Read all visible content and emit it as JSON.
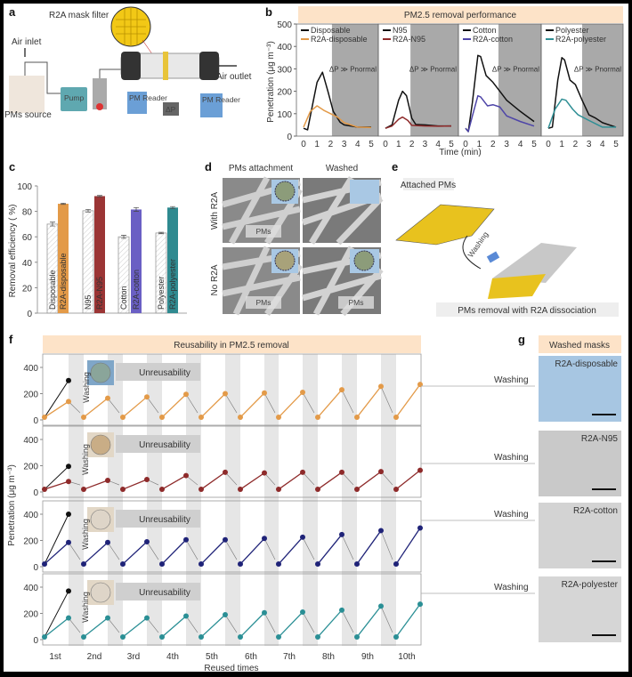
{
  "panels": {
    "a": "a",
    "b": "b",
    "c": "c",
    "d": "d",
    "e": "e",
    "f": "f",
    "g": "g"
  },
  "diagram_a": {
    "title": "R2A mask filter",
    "air_inlet": "Air inlet",
    "air_outlet": "Air outlet",
    "source": "PMs source",
    "pump": "Pump",
    "pm_reader": "PM Reader",
    "dp": "ΔP"
  },
  "panel_d": {
    "col1": "PMs attachment",
    "col2": "Washed",
    "row1": "With R2A",
    "row2": "No R2A",
    "pms": "PMs"
  },
  "panel_e": {
    "top": "Attached PMs",
    "washing": "Washing",
    "bottom": "PMs removal with R2A dissociation"
  },
  "panel_g": {
    "header": "Washed masks",
    "arrow_label": "Washing",
    "masks": [
      "R2A-disposable",
      "R2A-N95",
      "R2A-cotton",
      "R2A-polyester"
    ]
  },
  "colors": {
    "disposable": "#e39a48",
    "n95": "#8e2a2a",
    "cotton": "#4e45a8",
    "polyester": "#2f8f95",
    "control": "#111111",
    "shade": "#a9a9a9",
    "header": "#fde3c8"
  },
  "chart_data": [
    {
      "id": "b",
      "type": "line",
      "title": "PM2.5 removal performance",
      "xlabel": "Time (min)",
      "ylabel": "Penetration (μg m⁻³)",
      "ylim": [
        0,
        500
      ],
      "yticks": [
        0,
        100,
        200,
        300,
        400,
        500
      ],
      "xlim": [
        0,
        5
      ],
      "xticks": [
        0,
        1,
        2,
        3,
        4,
        5
      ],
      "annotation": "ΔP ≫ Pnormal",
      "subplots": [
        {
          "shade_from": 2.1,
          "series": [
            {
              "name": "Disposable",
              "color": "#111111",
              "points": [
                [
                  0,
                  35
                ],
                [
                  0.3,
                  28
                ],
                [
                  0.7,
                  150
                ],
                [
                  1,
                  240
                ],
                [
                  1.4,
                  285
                ],
                [
                  1.8,
                  200
                ],
                [
                  2.2,
                  110
                ],
                [
                  2.7,
                  62
                ],
                [
                  3,
                  50
                ],
                [
                  4,
                  40
                ],
                [
                  5,
                  40
                ]
              ]
            },
            {
              "name": "R2A-disposable",
              "color": "#e39a48",
              "points": [
                [
                  0,
                  40
                ],
                [
                  0.5,
                  110
                ],
                [
                  1,
                  135
                ],
                [
                  1.5,
                  115
                ],
                [
                  2,
                  100
                ],
                [
                  2.5,
                  85
                ],
                [
                  3,
                  60
                ],
                [
                  4,
                  40
                ],
                [
                  5,
                  38
                ]
              ]
            }
          ]
        },
        {
          "shade_from": 1.9,
          "series": [
            {
              "name": "N95",
              "color": "#111111",
              "points": [
                [
                  0,
                  35
                ],
                [
                  0.5,
                  50
                ],
                [
                  1,
                  160
                ],
                [
                  1.3,
                  200
                ],
                [
                  1.6,
                  180
                ],
                [
                  2,
                  80
                ],
                [
                  2.3,
                  52
                ],
                [
                  3,
                  50
                ],
                [
                  4,
                  45
                ],
                [
                  5,
                  45
                ]
              ]
            },
            {
              "name": "R2A-N95",
              "color": "#8e2a2a",
              "points": [
                [
                  0,
                  35
                ],
                [
                  0.5,
                  45
                ],
                [
                  1,
                  75
                ],
                [
                  1.3,
                  85
                ],
                [
                  1.7,
                  70
                ],
                [
                  2,
                  48
                ],
                [
                  3,
                  45
                ],
                [
                  4,
                  44
                ],
                [
                  5,
                  45
                ]
              ]
            }
          ]
        },
        {
          "shade_from": 2.4,
          "series": [
            {
              "name": "Cotton",
              "color": "#111111",
              "points": [
                [
                  0,
                  35
                ],
                [
                  0.2,
                  20
                ],
                [
                  0.5,
                  150
                ],
                [
                  0.9,
                  360
                ],
                [
                  1.1,
                  355
                ],
                [
                  1.5,
                  270
                ],
                [
                  2,
                  240
                ],
                [
                  2.5,
                  200
                ],
                [
                  3,
                  160
                ],
                [
                  4,
                  110
                ],
                [
                  5,
                  65
                ]
              ]
            },
            {
              "name": "R2A-cotton",
              "color": "#4e45a8",
              "points": [
                [
                  0,
                  35
                ],
                [
                  0.2,
                  20
                ],
                [
                  0.5,
                  90
                ],
                [
                  0.9,
                  180
                ],
                [
                  1.1,
                  175
                ],
                [
                  1.6,
                  135
                ],
                [
                  2,
                  140
                ],
                [
                  2.5,
                  130
                ],
                [
                  3,
                  90
                ],
                [
                  4,
                  65
                ],
                [
                  5,
                  45
                ]
              ]
            }
          ]
        },
        {
          "shade_from": 2.5,
          "series": [
            {
              "name": "Polyester",
              "color": "#111111",
              "points": [
                [
                  0,
                  35
                ],
                [
                  0.3,
                  40
                ],
                [
                  0.7,
                  250
                ],
                [
                  1,
                  350
                ],
                [
                  1.2,
                  340
                ],
                [
                  1.6,
                  250
                ],
                [
                  2,
                  230
                ],
                [
                  2.5,
                  160
                ],
                [
                  3,
                  95
                ],
                [
                  3.5,
                  80
                ],
                [
                  4,
                  60
                ],
                [
                  5,
                  40
                ]
              ]
            },
            {
              "name": "R2A-polyester",
              "color": "#2f8f95",
              "points": [
                [
                  0,
                  35
                ],
                [
                  0.5,
                  120
                ],
                [
                  1,
                  165
                ],
                [
                  1.3,
                  160
                ],
                [
                  1.8,
                  120
                ],
                [
                  2.2,
                  95
                ],
                [
                  3,
                  70
                ],
                [
                  4,
                  40
                ],
                [
                  5,
                  40
                ]
              ]
            }
          ]
        }
      ]
    },
    {
      "id": "c",
      "type": "bar",
      "ylabel": "Removal efficiency ( %)",
      "ylim": [
        0,
        100
      ],
      "yticks": [
        0,
        20,
        40,
        60,
        80,
        100
      ],
      "categories": [
        "Disposable",
        "R2A-disposable",
        "N95",
        "R2A-N95",
        "Cotton",
        "R2A-cotton",
        "Polyester",
        "R2A-polyester"
      ],
      "values": [
        70,
        86,
        80.5,
        92,
        60,
        81.5,
        63,
        83
      ],
      "errors": [
        1.5,
        0.5,
        1,
        0.5,
        1.2,
        1.5,
        0.6,
        0.8
      ],
      "bar_colors": [
        "hatched",
        "#e39a48",
        "hatched",
        "#9b3535",
        "hatched",
        "#6a5fc4",
        "hatched",
        "#2f8a90"
      ]
    },
    {
      "id": "f",
      "type": "line",
      "title": "Reusability in PM2.5 removal",
      "xlabel": "Reused times",
      "ylabel": "Penetration (μg m⁻³)",
      "ylim": [
        0,
        450
      ],
      "yticks": [
        0,
        200,
        400
      ],
      "xticks": [
        "1st",
        "2nd",
        "3rd",
        "4th",
        "5th",
        "6th",
        "7th",
        "8th",
        "9th",
        "10th"
      ],
      "annotation": "Unreusability",
      "washing_label": "Washing",
      "subplots": [
        {
          "name": "R2A-disposable",
          "color": "#e39a48",
          "low": 20,
          "highs": [
            140,
            165,
            175,
            195,
            200,
            205,
            210,
            230,
            255,
            270
          ],
          "control_high": 300
        },
        {
          "name": "R2A-N95",
          "color": "#8e2a2a",
          "low": 20,
          "highs": [
            80,
            88,
            95,
            125,
            150,
            145,
            150,
            150,
            155,
            165
          ],
          "control_high": 195
        },
        {
          "name": "R2A-cotton",
          "color": "#1f2378",
          "low": 20,
          "highs": [
            185,
            185,
            190,
            205,
            205,
            215,
            225,
            245,
            275,
            295
          ],
          "control_high": 400
        },
        {
          "name": "R2A-polyester",
          "color": "#2a8f95",
          "low": 20,
          "highs": [
            165,
            165,
            165,
            180,
            190,
            205,
            210,
            225,
            255,
            270
          ],
          "control_high": 370
        }
      ]
    }
  ]
}
